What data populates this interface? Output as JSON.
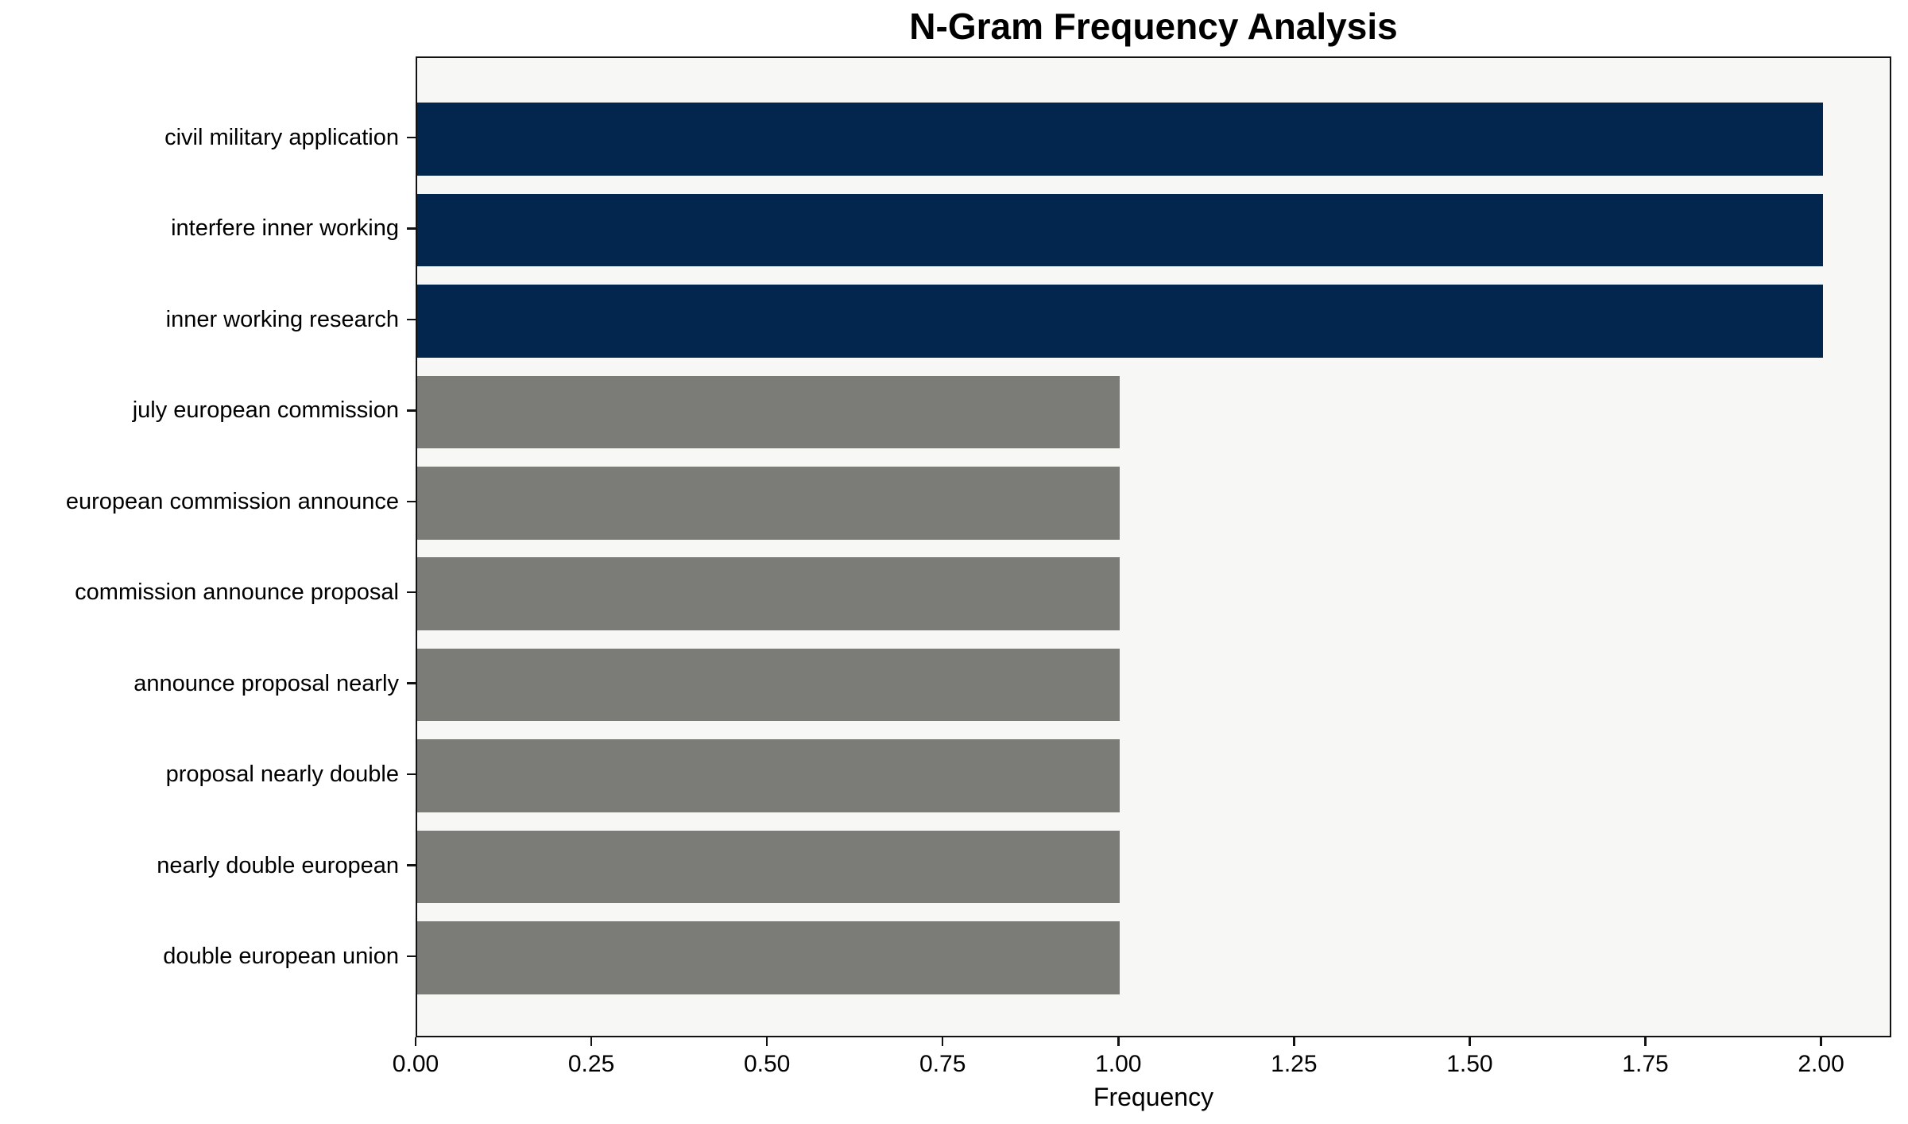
{
  "chart_data": {
    "type": "bar",
    "orientation": "horizontal",
    "title": "N-Gram Frequency Analysis",
    "xlabel": "Frequency",
    "ylabel": "",
    "categories": [
      "civil military application",
      "interfere inner working",
      "inner working research",
      "july european commission",
      "european commission announce",
      "commission announce proposal",
      "announce proposal nearly",
      "proposal nearly double",
      "nearly double european",
      "double european union"
    ],
    "values": [
      2,
      2,
      2,
      1,
      1,
      1,
      1,
      1,
      1,
      1
    ],
    "bar_colors": [
      "#03264f",
      "#03264f",
      "#03264f",
      "#7b7b78",
      "#7b7b78",
      "#7b7b78",
      "#7b7b78",
      "#7b7b78",
      "#7b7b78",
      "#7b7b78"
    ],
    "xlim": [
      0,
      2.1
    ],
    "xticks": [
      0,
      0.25,
      0.5,
      0.75,
      1.0,
      1.25,
      1.5,
      1.75,
      2.0
    ],
    "xtick_labels": [
      "0.00",
      "0.25",
      "0.50",
      "0.75",
      "1.00",
      "1.25",
      "1.50",
      "1.75",
      "2.00"
    ],
    "grid": false,
    "legend": false,
    "colors": {
      "bar_high": "#03264f",
      "bar_low": "#7b7b78",
      "plot_background": "#f7f7f6",
      "spine": "#121212",
      "text": "#000000"
    }
  }
}
